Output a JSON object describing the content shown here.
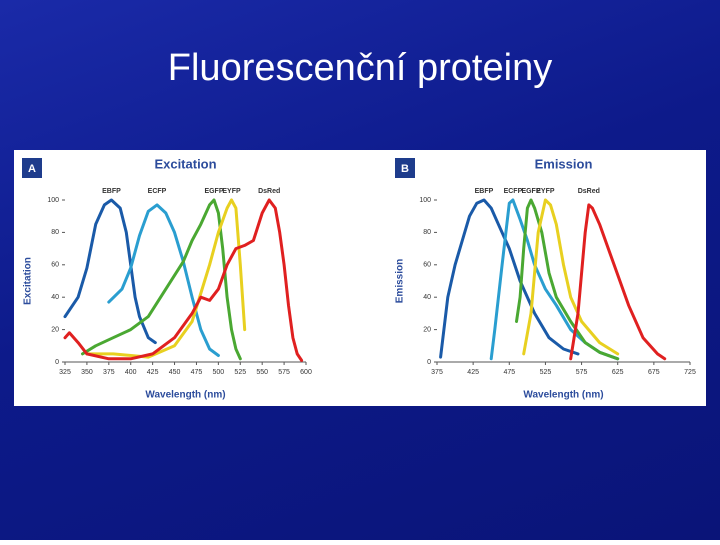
{
  "title": "Fluorescenční proteiny",
  "chart_data": [
    {
      "type": "line",
      "panel_label": "A",
      "title": "Excitation",
      "ylabel": "Excitation",
      "xlabel": "Wavelength (nm)",
      "xlim": [
        325,
        600
      ],
      "xticks": [
        325,
        350,
        375,
        400,
        425,
        450,
        475,
        500,
        525,
        550,
        575,
        600
      ],
      "ylim": [
        0,
        100
      ],
      "yticks": [
        0,
        20,
        40,
        60,
        80,
        100
      ],
      "series": [
        {
          "name": "EBFP",
          "color": "#1a5aa8",
          "x": [
            325,
            340,
            350,
            360,
            370,
            378,
            388,
            395,
            400,
            405,
            410,
            420,
            428
          ],
          "values": [
            28,
            40,
            58,
            85,
            97,
            100,
            95,
            80,
            60,
            40,
            28,
            15,
            12
          ]
        },
        {
          "name": "ECFP",
          "color": "#2a9ed0",
          "x": [
            375,
            390,
            400,
            410,
            420,
            430,
            440,
            450,
            460,
            470,
            480,
            490,
            500
          ],
          "values": [
            37,
            45,
            58,
            78,
            93,
            97,
            92,
            80,
            62,
            40,
            20,
            8,
            4
          ]
        },
        {
          "name": "EGFP",
          "color": "#4aa832",
          "x": [
            345,
            360,
            380,
            400,
            420,
            440,
            460,
            470,
            480,
            490,
            495,
            500,
            505,
            510,
            515,
            520,
            525
          ],
          "values": [
            5,
            10,
            15,
            20,
            28,
            45,
            62,
            75,
            85,
            97,
            100,
            92,
            70,
            40,
            20,
            8,
            2
          ]
        },
        {
          "name": "EYFP",
          "color": "#e8d020",
          "x": [
            350,
            380,
            420,
            450,
            470,
            490,
            500,
            510,
            515,
            520,
            525,
            530
          ],
          "values": [
            5,
            5,
            3,
            10,
            25,
            60,
            80,
            95,
            100,
            95,
            60,
            20
          ]
        },
        {
          "name": "DsRed",
          "color": "#e02020",
          "x": [
            325,
            330,
            340,
            350,
            375,
            400,
            425,
            450,
            470,
            480,
            490,
            500,
            510,
            520,
            530,
            540,
            550,
            558,
            565,
            570,
            575,
            580,
            585,
            590,
            595
          ],
          "values": [
            15,
            18,
            12,
            5,
            2,
            2,
            5,
            15,
            30,
            40,
            38,
            45,
            60,
            70,
            72,
            75,
            92,
            100,
            95,
            80,
            60,
            35,
            15,
            5,
            1
          ]
        }
      ]
    },
    {
      "type": "line",
      "panel_label": "B",
      "title": "Emission",
      "ylabel": "Emission",
      "xlabel": "Wavelength (nm)",
      "xlim": [
        375,
        725
      ],
      "xticks": [
        375,
        425,
        475,
        525,
        575,
        625,
        675,
        725
      ],
      "ylim": [
        0,
        100
      ],
      "yticks": [
        0,
        20,
        40,
        60,
        80,
        100
      ],
      "series": [
        {
          "name": "EBFP",
          "color": "#1a5aa8",
          "x": [
            380,
            390,
            400,
            410,
            420,
            430,
            440,
            450,
            460,
            475,
            490,
            510,
            530,
            550,
            570
          ],
          "values": [
            3,
            40,
            60,
            75,
            90,
            98,
            100,
            95,
            85,
            70,
            50,
            30,
            15,
            8,
            5
          ]
        },
        {
          "name": "ECFP",
          "color": "#2a9ed0",
          "x": [
            450,
            455,
            465,
            475,
            480,
            490,
            500,
            510,
            525,
            540,
            560,
            580,
            600,
            625
          ],
          "values": [
            2,
            20,
            60,
            98,
            100,
            88,
            75,
            60,
            45,
            35,
            20,
            12,
            6,
            2
          ]
        },
        {
          "name": "EGFP",
          "color": "#4aa832",
          "x": [
            485,
            490,
            495,
            500,
            505,
            510,
            520,
            530,
            540,
            560,
            580,
            600,
            625
          ],
          "values": [
            25,
            40,
            70,
            95,
            100,
            95,
            80,
            55,
            40,
            25,
            12,
            6,
            2
          ]
        },
        {
          "name": "EYFP",
          "color": "#e8d020",
          "x": [
            495,
            505,
            515,
            525,
            532,
            540,
            550,
            560,
            575,
            600,
            625
          ],
          "values": [
            5,
            30,
            80,
            100,
            97,
            85,
            60,
            40,
            25,
            12,
            5
          ]
        },
        {
          "name": "DsRed",
          "color": "#e02020",
          "x": [
            560,
            570,
            580,
            585,
            590,
            600,
            620,
            640,
            660,
            680,
            690
          ],
          "values": [
            2,
            30,
            80,
            97,
            95,
            85,
            60,
            35,
            15,
            5,
            2
          ]
        }
      ]
    }
  ]
}
